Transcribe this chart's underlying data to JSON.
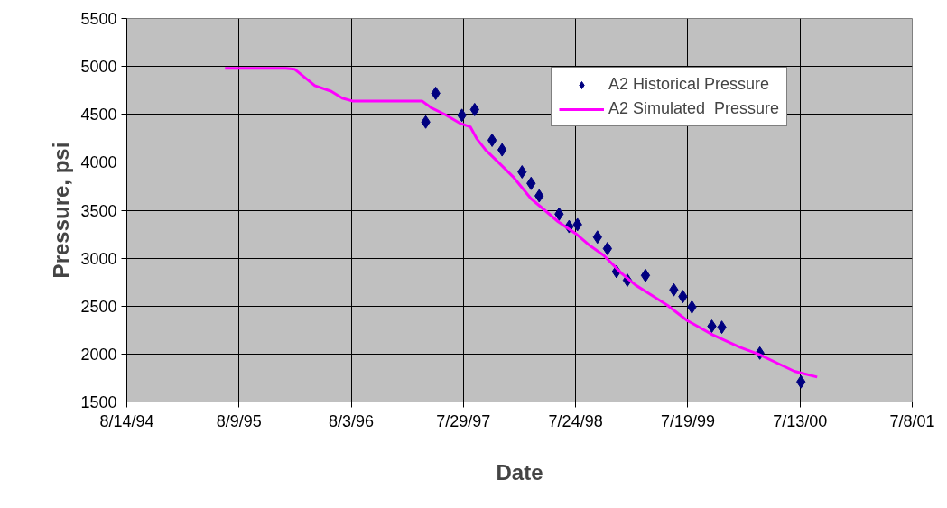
{
  "chart_data": {
    "type": "scatter",
    "xlabel": "Date",
    "ylabel": "Pressure, psi",
    "xlim": [
      "1994-08-14",
      "2001-07-08"
    ],
    "xticks": [
      {
        "value": "1994-08-14",
        "label": "8/14/94"
      },
      {
        "value": "1995-08-09",
        "label": "8/9/95"
      },
      {
        "value": "1996-08-03",
        "label": "8/3/96"
      },
      {
        "value": "1997-07-29",
        "label": "7/29/97"
      },
      {
        "value": "1998-07-24",
        "label": "7/24/98"
      },
      {
        "value": "1999-07-19",
        "label": "7/19/99"
      },
      {
        "value": "2000-07-13",
        "label": "7/13/00"
      },
      {
        "value": "2001-07-08",
        "label": "7/8/01"
      }
    ],
    "ylim": [
      1500,
      5500
    ],
    "yticks": [
      1500,
      2000,
      2500,
      3000,
      3500,
      4000,
      4500,
      5000,
      5500
    ],
    "grid": true,
    "legend": "top right",
    "series": [
      {
        "name": "A2 Historical Pressure",
        "marker": "diamond",
        "color": "#000080",
        "x": [
          "1997-03-30",
          "1997-05-01",
          "1997-07-24",
          "1997-09-03",
          "1997-10-29",
          "1997-11-30",
          "1998-02-02",
          "1998-03-03",
          "1998-03-29",
          "1998-06-01",
          "1998-07-03",
          "1998-07-30",
          "1998-10-02",
          "1998-11-03",
          "1998-12-02",
          "1999-01-06",
          "1999-03-05",
          "1999-06-04",
          "1999-07-03",
          "1999-08-01",
          "1999-10-04",
          "1999-11-05",
          "2000-03-06",
          "2000-07-16"
        ],
        "values": [
          4420,
          4720,
          4490,
          4550,
          4230,
          4130,
          3900,
          3780,
          3650,
          3460,
          3330,
          3350,
          3220,
          3100,
          2860,
          2770,
          2820,
          2670,
          2600,
          2490,
          2290,
          2280,
          2010,
          1710
        ]
      },
      {
        "name": "A2 Simulated  Pressure",
        "type": "line",
        "marker": "none",
        "line_style": "solid",
        "color": "#ff00ff",
        "x": [
          "1995-06-25",
          "1996-01-06",
          "1996-02-04",
          "1996-04-08",
          "1996-05-31",
          "1996-07-05",
          "1996-08-06",
          "1997-03-18",
          "1997-04-16",
          "1997-05-30",
          "1997-07-16",
          "1997-08-20",
          "1997-09-09",
          "1997-10-08",
          "1997-11-21",
          "1998-01-04",
          "1998-03-03",
          "1998-04-16",
          "1998-05-29",
          "1998-07-27",
          "1998-09-08",
          "1998-10-22",
          "1998-12-19",
          "1999-02-01",
          "1999-03-17",
          "1999-05-14",
          "1999-07-17",
          "1999-10-07",
          "2000-01-02",
          "2000-03-01",
          "2000-05-04",
          "2000-06-25",
          "2000-09-06"
        ],
        "values": [
          4980,
          4980,
          4970,
          4800,
          4740,
          4670,
          4640,
          4640,
          4570,
          4500,
          4410,
          4370,
          4250,
          4130,
          3990,
          3850,
          3620,
          3500,
          3380,
          3250,
          3130,
          3030,
          2840,
          2720,
          2630,
          2510,
          2350,
          2200,
          2070,
          2000,
          1900,
          1820,
          1760
        ]
      }
    ]
  }
}
